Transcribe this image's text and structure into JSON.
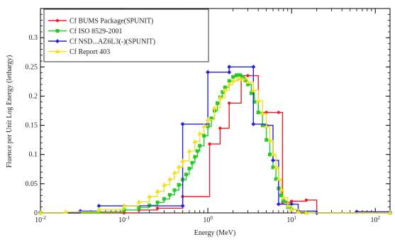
{
  "chart_data": {
    "type": "line",
    "xlabel": "Energy (MeV)",
    "ylabel": "Fluence per Unit Log Energy (lethargy)",
    "x_scale": "log",
    "xlim": [
      0.01,
      150
    ],
    "ylim": [
      0,
      0.35
    ],
    "x_ticks": [
      {
        "value": 0.01,
        "label": "10-2"
      },
      {
        "value": 0.1,
        "label": "10-1"
      },
      {
        "value": 1,
        "label": "100"
      },
      {
        "value": 10,
        "label": "101"
      },
      {
        "value": 100,
        "label": "102"
      }
    ],
    "y_ticks": [
      {
        "value": 0,
        "label": "0"
      },
      {
        "value": 0.05,
        "label": "0.05"
      },
      {
        "value": 0.1,
        "label": "0.1"
      },
      {
        "value": 0.15,
        "label": "0.15"
      },
      {
        "value": 0.2,
        "label": "0.2"
      },
      {
        "value": 0.25,
        "label": "0.25"
      },
      {
        "value": 0.3,
        "label": "0.3"
      }
    ],
    "legend_position": "top-left",
    "series": [
      {
        "name": "Cf BUMS Package(SPUNIT)",
        "color": "#e8202a",
        "marker": "circle",
        "points": [
          [
            0.01,
            0
          ],
          [
            0.1,
            0
          ],
          [
            0.15,
            0.005
          ],
          [
            0.25,
            0.008
          ],
          [
            0.5,
            0.028
          ],
          [
            1.05,
            0.118
          ],
          [
            1.4,
            0.145
          ],
          [
            1.8,
            0.188
          ],
          [
            2.5,
            0.235
          ],
          [
            3.0,
            0.235
          ],
          [
            4.0,
            0.172
          ],
          [
            5.0,
            0.172
          ],
          [
            7.0,
            0.172
          ],
          [
            7.8,
            0.018
          ],
          [
            10,
            0.02
          ],
          [
            15,
            0.022
          ],
          [
            20,
            0
          ],
          [
            150,
            0
          ]
        ]
      },
      {
        "name": "Cf ISO 8529-2001",
        "color": "#22cc22",
        "marker": "square",
        "points": [
          [
            0.01,
            0
          ],
          [
            0.05,
            0.002
          ],
          [
            0.1,
            0.005
          ],
          [
            0.15,
            0.009
          ],
          [
            0.2,
            0.013
          ],
          [
            0.25,
            0.018
          ],
          [
            0.3,
            0.024
          ],
          [
            0.35,
            0.031
          ],
          [
            0.4,
            0.039
          ],
          [
            0.45,
            0.048
          ],
          [
            0.5,
            0.057
          ],
          [
            0.55,
            0.066
          ],
          [
            0.6,
            0.076
          ],
          [
            0.65,
            0.086
          ],
          [
            0.7,
            0.096
          ],
          [
            0.75,
            0.106
          ],
          [
            0.8,
            0.115
          ],
          [
            0.9,
            0.132
          ],
          [
            1.0,
            0.148
          ],
          [
            1.1,
            0.162
          ],
          [
            1.2,
            0.175
          ],
          [
            1.3,
            0.188
          ],
          [
            1.4,
            0.198
          ],
          [
            1.5,
            0.207
          ],
          [
            1.6,
            0.215
          ],
          [
            1.8,
            0.226
          ],
          [
            2.0,
            0.233
          ],
          [
            2.2,
            0.236
          ],
          [
            2.4,
            0.236
          ],
          [
            2.6,
            0.232
          ],
          [
            2.8,
            0.227
          ],
          [
            3.0,
            0.22
          ],
          [
            3.3,
            0.205
          ],
          [
            3.6,
            0.19
          ],
          [
            4.0,
            0.172
          ],
          [
            4.5,
            0.15
          ],
          [
            5.0,
            0.125
          ],
          [
            5.5,
            0.1
          ],
          [
            6.0,
            0.078
          ],
          [
            6.5,
            0.058
          ],
          [
            7.0,
            0.042
          ],
          [
            7.5,
            0.03
          ],
          [
            8.0,
            0.02
          ],
          [
            9.0,
            0.01
          ],
          [
            10,
            0.006
          ],
          [
            12,
            0.002
          ],
          [
            15,
            0
          ],
          [
            150,
            0
          ]
        ]
      },
      {
        "name": "Cf NSD...AZ6L3(-)(SPUNIT)",
        "color": "#2222dd",
        "marker": "diamond",
        "points": [
          [
            0.01,
            0
          ],
          [
            0.03,
            0.003
          ],
          [
            0.05,
            0.012
          ],
          [
            0.1,
            0.012
          ],
          [
            0.5,
            0.012
          ],
          [
            0.5,
            0.152
          ],
          [
            1.0,
            0.152
          ],
          [
            1.0,
            0.241
          ],
          [
            1.8,
            0.241
          ],
          [
            1.8,
            0.25
          ],
          [
            3.5,
            0.25
          ],
          [
            3.5,
            0.152
          ],
          [
            5.0,
            0.15
          ],
          [
            6.0,
            0.09
          ],
          [
            7.0,
            0.015
          ],
          [
            10,
            0.015
          ],
          [
            12,
            0.003
          ],
          [
            20,
            0
          ],
          [
            60,
            0.002
          ],
          [
            150,
            0
          ]
        ]
      },
      {
        "name": "Cf Report 403",
        "color": "#f0e020",
        "marker": "triangle",
        "points": [
          [
            0.01,
            0
          ],
          [
            0.02,
            0.002
          ],
          [
            0.05,
            0.006
          ],
          [
            0.1,
            0.012
          ],
          [
            0.15,
            0.019
          ],
          [
            0.2,
            0.028
          ],
          [
            0.25,
            0.037
          ],
          [
            0.3,
            0.048
          ],
          [
            0.35,
            0.058
          ],
          [
            0.4,
            0.069
          ],
          [
            0.45,
            0.079
          ],
          [
            0.5,
            0.089
          ],
          [
            0.6,
            0.106
          ],
          [
            0.7,
            0.122
          ],
          [
            0.8,
            0.136
          ],
          [
            0.9,
            0.149
          ],
          [
            1.0,
            0.16
          ],
          [
            1.2,
            0.18
          ],
          [
            1.4,
            0.197
          ],
          [
            1.6,
            0.21
          ],
          [
            1.8,
            0.22
          ],
          [
            2.0,
            0.226
          ],
          [
            2.3,
            0.23
          ],
          [
            2.6,
            0.229
          ],
          [
            3.0,
            0.224
          ],
          [
            3.5,
            0.21
          ],
          [
            4.0,
            0.192
          ],
          [
            4.5,
            0.17
          ],
          [
            5.0,
            0.148
          ],
          [
            5.5,
            0.124
          ],
          [
            6.0,
            0.1
          ],
          [
            6.5,
            0.078
          ],
          [
            7.0,
            0.058
          ],
          [
            7.5,
            0.04
          ],
          [
            8.0,
            0.026
          ],
          [
            9.0,
            0.012
          ],
          [
            10,
            0.006
          ],
          [
            12,
            0.002
          ],
          [
            15,
            0
          ],
          [
            150,
            0
          ]
        ]
      }
    ]
  }
}
